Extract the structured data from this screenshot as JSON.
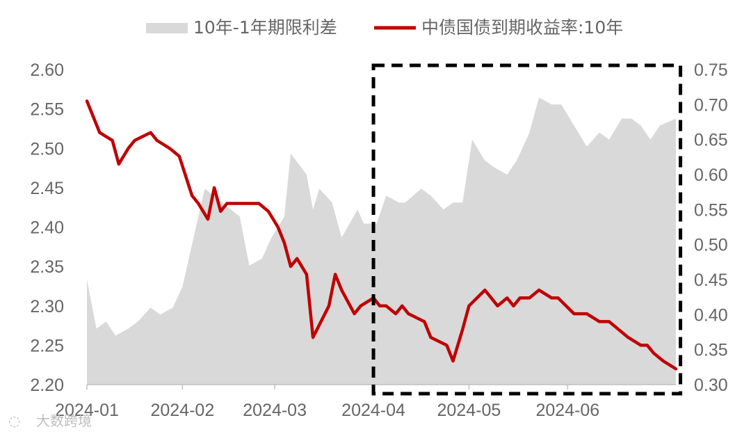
{
  "chart_data": {
    "type": "line",
    "legend_position": "top",
    "series": [
      {
        "name": "10年-1年期限利差",
        "kind": "area",
        "axis": "right",
        "color": "#d9d9d9",
        "points": [
          [
            "2024-01-02",
            0.45
          ],
          [
            "2024-01-05",
            0.38
          ],
          [
            "2024-01-08",
            0.39
          ],
          [
            "2024-01-11",
            0.37
          ],
          [
            "2024-01-15",
            0.38
          ],
          [
            "2024-01-18",
            0.39
          ],
          [
            "2024-01-22",
            0.41
          ],
          [
            "2024-01-25",
            0.4
          ],
          [
            "2024-01-29",
            0.41
          ],
          [
            "2024-02-01",
            0.44
          ],
          [
            "2024-02-05",
            0.52
          ],
          [
            "2024-02-08",
            0.58
          ],
          [
            "2024-02-19",
            0.54
          ],
          [
            "2024-02-22",
            0.47
          ],
          [
            "2024-02-26",
            0.48
          ],
          [
            "2024-02-29",
            0.51
          ],
          [
            "2024-03-04",
            0.54
          ],
          [
            "2024-03-06",
            0.63
          ],
          [
            "2024-03-11",
            0.6
          ],
          [
            "2024-03-13",
            0.55
          ],
          [
            "2024-03-15",
            0.58
          ],
          [
            "2024-03-19",
            0.56
          ],
          [
            "2024-03-22",
            0.51
          ],
          [
            "2024-03-27",
            0.55
          ],
          [
            "2024-03-29",
            0.53
          ],
          [
            "2024-04-02",
            0.53
          ],
          [
            "2024-04-05",
            0.57
          ],
          [
            "2024-04-09",
            0.56
          ],
          [
            "2024-04-11",
            0.56
          ],
          [
            "2024-04-16",
            0.58
          ],
          [
            "2024-04-19",
            0.57
          ],
          [
            "2024-04-23",
            0.55
          ],
          [
            "2024-04-26",
            0.56
          ],
          [
            "2024-04-29",
            0.56
          ],
          [
            "2024-05-02",
            0.65
          ],
          [
            "2024-05-06",
            0.62
          ],
          [
            "2024-05-09",
            0.61
          ],
          [
            "2024-05-13",
            0.6
          ],
          [
            "2024-05-16",
            0.62
          ],
          [
            "2024-05-20",
            0.66
          ],
          [
            "2024-05-23",
            0.71
          ],
          [
            "2024-05-27",
            0.7
          ],
          [
            "2024-05-30",
            0.7
          ],
          [
            "2024-06-03",
            0.67
          ],
          [
            "2024-06-07",
            0.64
          ],
          [
            "2024-06-11",
            0.66
          ],
          [
            "2024-06-14",
            0.65
          ],
          [
            "2024-06-18",
            0.68
          ],
          [
            "2024-06-21",
            0.68
          ],
          [
            "2024-06-24",
            0.67
          ],
          [
            "2024-06-27",
            0.65
          ],
          [
            "2024-06-30",
            0.67
          ],
          [
            "2024-07-05",
            0.68
          ]
        ]
      },
      {
        "name": "中债国债到期收益率:10年",
        "kind": "line",
        "axis": "left",
        "color": "#c00000",
        "points": [
          [
            "2024-01-02",
            2.56
          ],
          [
            "2024-01-04",
            2.54
          ],
          [
            "2024-01-06",
            2.52
          ],
          [
            "2024-01-10",
            2.51
          ],
          [
            "2024-01-12",
            2.48
          ],
          [
            "2024-01-15",
            2.5
          ],
          [
            "2024-01-17",
            2.51
          ],
          [
            "2024-01-22",
            2.52
          ],
          [
            "2024-01-24",
            2.51
          ],
          [
            "2024-01-28",
            2.5
          ],
          [
            "2024-01-31",
            2.49
          ],
          [
            "2024-02-04",
            2.44
          ],
          [
            "2024-02-06",
            2.43
          ],
          [
            "2024-02-09",
            2.41
          ],
          [
            "2024-02-11",
            2.45
          ],
          [
            "2024-02-13",
            2.42
          ],
          [
            "2024-02-15",
            2.43
          ],
          [
            "2024-02-20",
            2.43
          ],
          [
            "2024-02-25",
            2.43
          ],
          [
            "2024-02-28",
            2.42
          ],
          [
            "2024-03-02",
            2.4
          ],
          [
            "2024-03-04",
            2.38
          ],
          [
            "2024-03-06",
            2.35
          ],
          [
            "2024-03-08",
            2.36
          ],
          [
            "2024-03-11",
            2.34
          ],
          [
            "2024-03-13",
            2.26
          ],
          [
            "2024-03-18",
            2.3
          ],
          [
            "2024-03-20",
            2.34
          ],
          [
            "2024-03-22",
            2.32
          ],
          [
            "2024-03-26",
            2.29
          ],
          [
            "2024-03-28",
            2.3
          ],
          [
            "2024-04-01",
            2.31
          ],
          [
            "2024-04-03",
            2.3
          ],
          [
            "2024-04-05",
            2.3
          ],
          [
            "2024-04-08",
            2.29
          ],
          [
            "2024-04-10",
            2.3
          ],
          [
            "2024-04-12",
            2.29
          ],
          [
            "2024-04-17",
            2.28
          ],
          [
            "2024-04-19",
            2.26
          ],
          [
            "2024-04-24",
            2.25
          ],
          [
            "2024-04-26",
            2.23
          ],
          [
            "2024-04-29",
            2.27
          ],
          [
            "2024-05-01",
            2.3
          ],
          [
            "2024-05-06",
            2.32
          ],
          [
            "2024-05-08",
            2.31
          ],
          [
            "2024-05-10",
            2.3
          ],
          [
            "2024-05-13",
            2.31
          ],
          [
            "2024-05-15",
            2.3
          ],
          [
            "2024-05-17",
            2.31
          ],
          [
            "2024-05-20",
            2.31
          ],
          [
            "2024-05-23",
            2.32
          ],
          [
            "2024-05-27",
            2.31
          ],
          [
            "2024-05-29",
            2.31
          ],
          [
            "2024-06-03",
            2.29
          ],
          [
            "2024-06-05",
            2.29
          ],
          [
            "2024-06-07",
            2.29
          ],
          [
            "2024-06-11",
            2.28
          ],
          [
            "2024-06-14",
            2.28
          ],
          [
            "2024-06-17",
            2.27
          ],
          [
            "2024-06-20",
            2.26
          ],
          [
            "2024-06-24",
            2.25
          ],
          [
            "2024-06-26",
            2.25
          ],
          [
            "2024-06-28",
            2.24
          ],
          [
            "2024-07-01",
            2.23
          ],
          [
            "2024-07-05",
            2.22
          ]
        ]
      }
    ],
    "x_ticks": [
      "2024-01",
      "2024-02",
      "2024-03",
      "2024-04",
      "2024-05",
      "2024-06"
    ],
    "y_left": {
      "min": 2.2,
      "max": 2.6,
      "ticks": [
        "2.20",
        "2.25",
        "2.30",
        "2.35",
        "2.40",
        "2.45",
        "2.50",
        "2.55",
        "2.60"
      ]
    },
    "y_right": {
      "min": 0.3,
      "max": 0.75,
      "ticks": [
        "0.30",
        "0.35",
        "0.40",
        "0.45",
        "0.50",
        "0.55",
        "0.60",
        "0.65",
        "0.70",
        "0.75"
      ]
    },
    "x_range": [
      "2024-01-02",
      "2024-07-05"
    ],
    "highlight_region": {
      "from": "2024-04-01",
      "to": "2024-07-06",
      "style": "dashed black box"
    },
    "grid": false
  },
  "watermark": {
    "text": "大数跨境"
  }
}
